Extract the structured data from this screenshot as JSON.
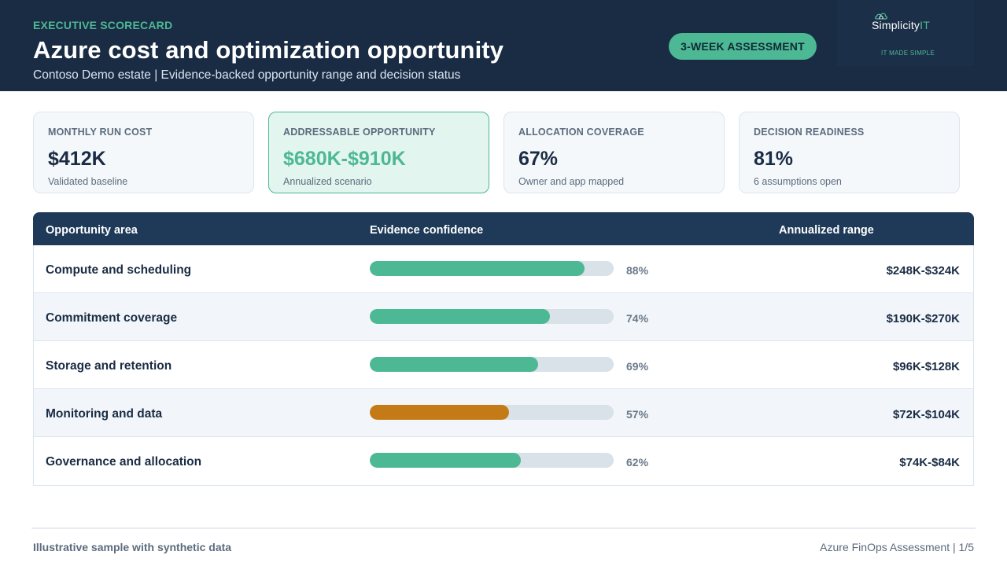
{
  "header": {
    "eyebrow": "EXECUTIVE SCORECARD",
    "title": "Azure cost and optimization opportunity",
    "subtitle": "Contoso Demo estate | Evidence-backed opportunity range and decision status",
    "badge": "3-WEEK ASSESSMENT",
    "logo": {
      "name_main": "Simplicity",
      "name_accent": "IT",
      "tagline": "IT MADE SIMPLE"
    }
  },
  "kpis": [
    {
      "label": "MONTHLY RUN COST",
      "value": "$412K",
      "note": "Validated baseline"
    },
    {
      "label": "ADDRESSABLE OPPORTUNITY",
      "value": "$680K-$910K",
      "note": "Annualized scenario"
    },
    {
      "label": "ALLOCATION COVERAGE",
      "value": "67%",
      "note": "Owner and app mapped"
    },
    {
      "label": "DECISION READINESS",
      "value": "81%",
      "note": "6 assumptions open"
    }
  ],
  "table": {
    "headers": {
      "area": "Opportunity area",
      "confidence": "Evidence confidence",
      "range": "Annualized range"
    },
    "rows": [
      {
        "area": "Compute and scheduling",
        "confidence": 88,
        "confidence_label": "88%",
        "range": "$248K-$324K",
        "bar_color": "#4db894"
      },
      {
        "area": "Commitment coverage",
        "confidence": 74,
        "confidence_label": "74%",
        "range": "$190K-$270K",
        "bar_color": "#4db894"
      },
      {
        "area": "Storage and retention",
        "confidence": 69,
        "confidence_label": "69%",
        "range": "$96K-$128K",
        "bar_color": "#4db894"
      },
      {
        "area": "Monitoring and data",
        "confidence": 57,
        "confidence_label": "57%",
        "range": "$72K-$104K",
        "bar_color": "#c47a16"
      },
      {
        "area": "Governance and allocation",
        "confidence": 62,
        "confidence_label": "62%",
        "range": "$74K-$84K",
        "bar_color": "#4db894"
      }
    ]
  },
  "footer": {
    "left": "Illustrative sample with synthetic data",
    "right": "Azure FinOps Assessment | 1/5"
  },
  "colors": {
    "navy": "#1a2c44",
    "accent": "#4db894",
    "warning": "#c47a16"
  }
}
